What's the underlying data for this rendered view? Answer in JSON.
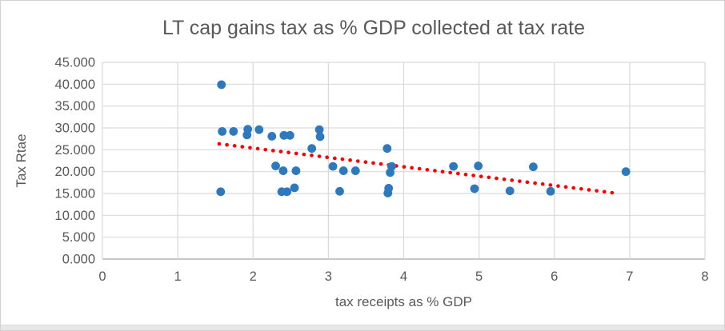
{
  "chart_data": {
    "type": "scatter",
    "title": "LT cap gains tax as % GDP collected at tax rate",
    "xlabel": "tax receipts as % GDP",
    "ylabel": "Tax Rtae",
    "xlim": [
      0,
      8
    ],
    "ylim": [
      0,
      45
    ],
    "grid": true,
    "legend": "none",
    "x_tick_values": [
      0,
      1,
      2,
      3,
      4,
      5,
      6,
      7,
      8
    ],
    "x_tick_labels": [
      "0",
      "1",
      "2",
      "3",
      "4",
      "5",
      "6",
      "7",
      "8"
    ],
    "y_tick_values": [
      0,
      5,
      10,
      15,
      20,
      25,
      30,
      35,
      40,
      45
    ],
    "y_tick_labels": [
      "0.000",
      "5.000",
      "10.000",
      "15.000",
      "20.000",
      "25.000",
      "30.000",
      "35.000",
      "40.000",
      "45.000"
    ],
    "series": [
      {
        "marker_color": "#2E79BE",
        "points": [
          [
            1.58,
            39.9
          ],
          [
            1.57,
            15.4
          ],
          [
            1.59,
            29.2
          ],
          [
            1.74,
            29.2
          ],
          [
            1.92,
            28.4
          ],
          [
            1.93,
            29.7
          ],
          [
            2.08,
            29.6
          ],
          [
            2.25,
            28.1
          ],
          [
            2.3,
            21.3
          ],
          [
            2.38,
            15.4
          ],
          [
            2.4,
            20.2
          ],
          [
            2.41,
            28.3
          ],
          [
            2.45,
            15.4
          ],
          [
            2.49,
            28.3
          ],
          [
            2.55,
            16.3
          ],
          [
            2.57,
            20.2
          ],
          [
            2.78,
            25.3
          ],
          [
            2.88,
            29.6
          ],
          [
            2.89,
            28.0
          ],
          [
            3.06,
            21.2
          ],
          [
            3.15,
            15.5
          ],
          [
            3.2,
            20.2
          ],
          [
            3.36,
            20.2
          ],
          [
            3.78,
            25.3
          ],
          [
            3.79,
            15.1
          ],
          [
            3.8,
            16.2
          ],
          [
            3.82,
            19.8
          ],
          [
            3.84,
            21.2
          ],
          [
            4.66,
            21.2
          ],
          [
            4.94,
            16.1
          ],
          [
            4.99,
            21.3
          ],
          [
            5.41,
            15.6
          ],
          [
            5.72,
            21.1
          ],
          [
            5.95,
            15.5
          ],
          [
            6.95,
            20.0
          ]
        ]
      }
    ],
    "trendline": {
      "style": "dotted",
      "color": "#FF0000",
      "x_start": 1.55,
      "y_start": 26.35,
      "x_end": 6.85,
      "y_end": 15.0
    }
  },
  "colors": {
    "marker": "#2E79BE",
    "trendline": "#FF0000",
    "gridline": "#D9D9D9",
    "axis_line": "#BFBFBF",
    "text": "#595959",
    "background": "#FFFFFF",
    "window_strip": "#E7E7E7"
  }
}
